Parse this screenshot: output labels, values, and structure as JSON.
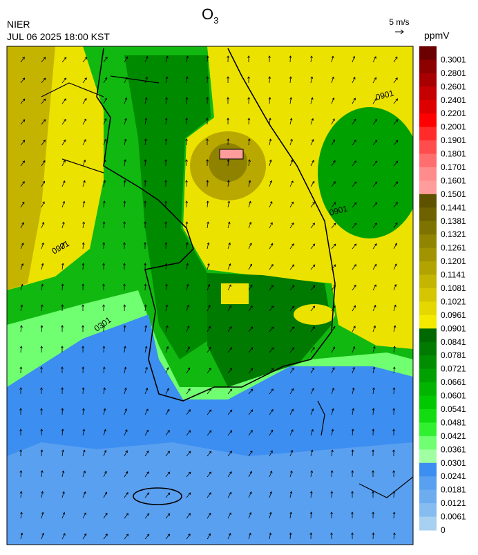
{
  "header": {
    "title": {
      "main": "O",
      "sub": "3"
    },
    "agency": "NIER",
    "datetime": "JUL 06 2025 18:00 KST",
    "wind_scale": "5 m/s"
  },
  "legend": {
    "unit": "ppmV",
    "levels": [
      0.3001,
      0.2801,
      0.2601,
      0.2401,
      0.2201,
      0.2001,
      0.1901,
      0.1801,
      0.1701,
      0.1601,
      0.1501,
      0.1441,
      0.1381,
      0.1321,
      0.1261,
      0.1201,
      0.1141,
      0.1081,
      0.1021,
      0.0961,
      0.0901,
      0.0841,
      0.0781,
      0.0721,
      0.0661,
      0.0601,
      0.0541,
      0.0481,
      0.0421,
      0.0361,
      0.0301,
      0.0241,
      0.0181,
      0.0121,
      0.0061,
      0
    ],
    "colors": [
      "#6a0000",
      "#8c0000",
      "#a80000",
      "#c40000",
      "#de0000",
      "#ff0000",
      "#ff2a2a",
      "#ff4c4c",
      "#ff6e6e",
      "#ff8c8c",
      "#ff9c9c",
      "#5e5200",
      "#6e6200",
      "#7e7200",
      "#908400",
      "#a29400",
      "#b2a400",
      "#c4b600",
      "#d4c600",
      "#e4d800",
      "#f4ea00",
      "#006800",
      "#007a00",
      "#008e00",
      "#00a000",
      "#00b400",
      "#00c800",
      "#10dc10",
      "#30f030",
      "#70ff70",
      "#a0ffa0",
      "#3c8ef0",
      "#5aa0f0",
      "#6eacf0",
      "#86bcf0",
      "#a8d0f0"
    ]
  },
  "contour_labels": [
    "0901",
    "0901",
    "0901",
    "0301"
  ]
}
